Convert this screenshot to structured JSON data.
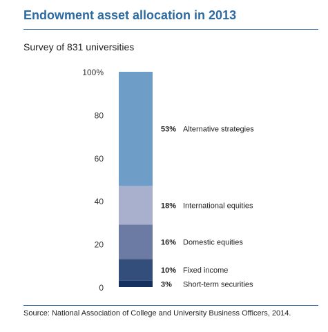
{
  "title": "Endowment asset allocation in 2013",
  "subtitle": "Survey of 831 universities",
  "source": "Source: National Association of College and University Business Officers, 2014.",
  "chart_data": {
    "type": "bar",
    "stacked": true,
    "ylim": [
      0,
      100
    ],
    "yticks": [
      0,
      20,
      40,
      60,
      80,
      100
    ],
    "ytick_labels": [
      "0",
      "20",
      "40",
      "60",
      "80",
      "100%"
    ],
    "grid": false,
    "series": [
      {
        "name": "Short-term securities",
        "value": 3,
        "value_label": "3%",
        "color": "#14305f"
      },
      {
        "name": "Fixed income",
        "value": 10,
        "value_label": "10%",
        "color": "#344e7c"
      },
      {
        "name": "Domestic equities",
        "value": 16,
        "value_label": "16%",
        "color": "#6c7ba3"
      },
      {
        "name": "International equities",
        "value": 18,
        "value_label": "18%",
        "color": "#a9b0cd"
      },
      {
        "name": "Alternative strategies",
        "value": 53,
        "value_label": "53%",
        "color": "#6e9dc8"
      }
    ]
  }
}
